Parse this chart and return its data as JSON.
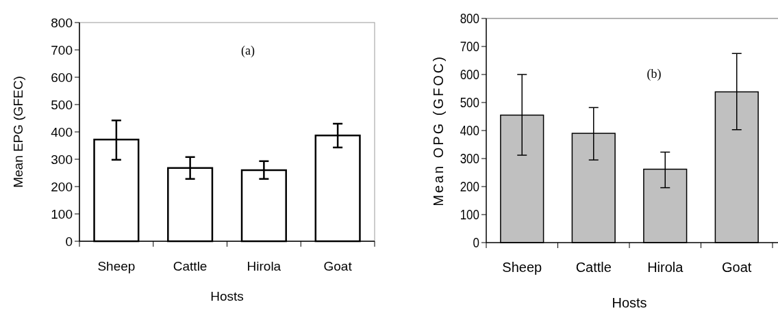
{
  "chart_data": [
    {
      "type": "bar",
      "categories": [
        "Sheep",
        "Cattle",
        "Hirola",
        "Goat"
      ],
      "xlabel": "Hosts",
      "ylabel": "Mean EPG (GFEC)",
      "annotations": [
        "(a)"
      ],
      "ylim": [
        0,
        800
      ],
      "yticks": [
        0,
        100,
        200,
        300,
        400,
        500,
        600,
        700,
        800
      ],
      "grid": false,
      "series": [
        {
          "color": "#ffffff",
          "values": [
            372,
            268,
            260,
            387
          ],
          "errors": [
            [
              298,
              442
            ],
            [
              228,
              308
            ],
            [
              228,
              293
            ],
            [
              343,
              430
            ]
          ]
        }
      ]
    },
    {
      "type": "bar",
      "categories": [
        "Sheep",
        "Cattle",
        "Hirola",
        "Goat"
      ],
      "xlabel": "Hosts",
      "ylabel": "Mean OPG (GFOC)",
      "annotations": [
        "(b)"
      ],
      "ylim": [
        0,
        800
      ],
      "yticks": [
        0,
        100,
        200,
        300,
        400,
        500,
        600,
        700,
        800
      ],
      "grid": false,
      "series": [
        {
          "color": "#c0c0c0",
          "values": [
            455,
            390,
            262,
            538
          ],
          "errors": [
            [
              312,
              600
            ],
            [
              295,
              482
            ],
            [
              196,
              323
            ],
            [
              403,
              675
            ]
          ]
        }
      ]
    }
  ]
}
